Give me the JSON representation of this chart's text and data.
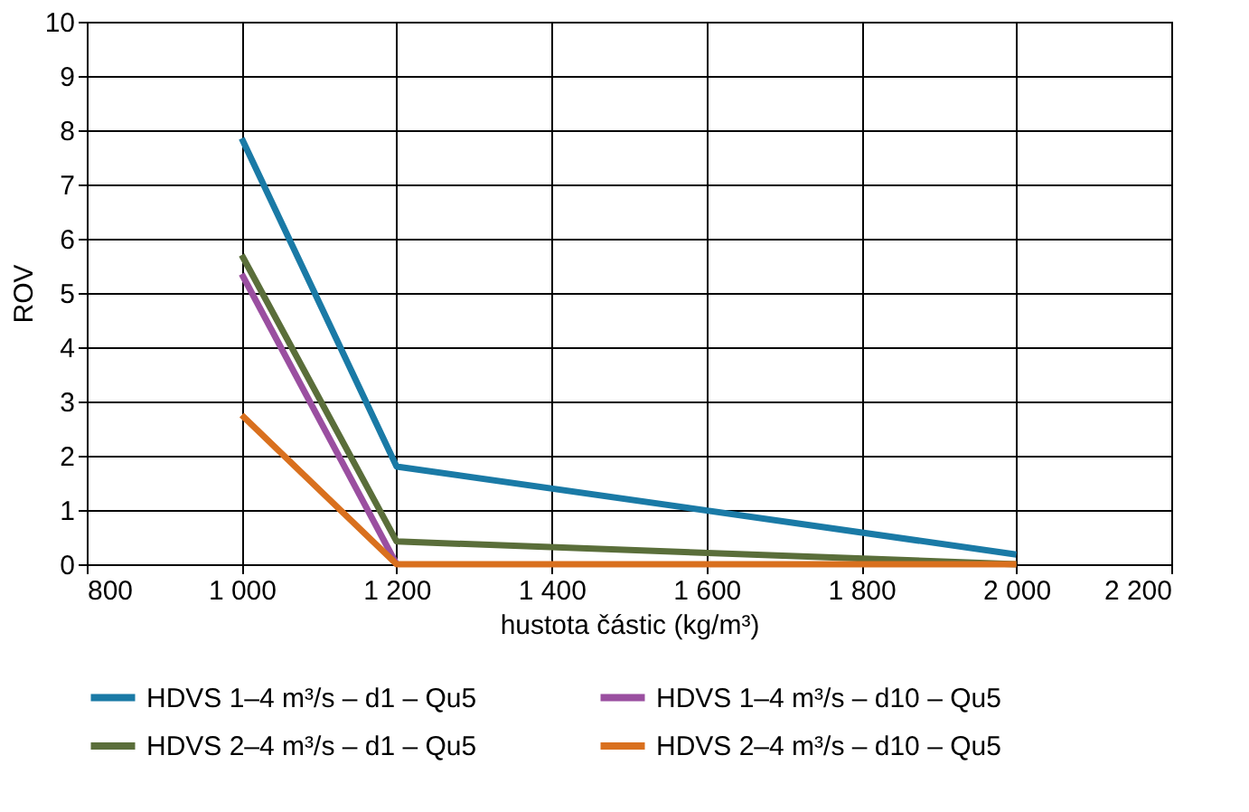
{
  "chart_data": {
    "type": "line",
    "xlabel": "hustota částic (kg/m³)",
    "ylabel": "ROV",
    "xlim": [
      800,
      2200
    ],
    "xticks": [
      {
        "value": 800,
        "label": "800"
      },
      {
        "value": 1000,
        "label": "1 000"
      },
      {
        "value": 1200,
        "label": "1 200"
      },
      {
        "value": 1400,
        "label": "1 400"
      },
      {
        "value": 1600,
        "label": "1 600"
      },
      {
        "value": 1800,
        "label": "1 800"
      },
      {
        "value": 2000,
        "label": "2 000"
      },
      {
        "value": 2200,
        "label": "2 200"
      }
    ],
    "ylim": [
      0,
      10
    ],
    "yticks": [
      0,
      1,
      2,
      3,
      4,
      5,
      6,
      7,
      8,
      9,
      10
    ],
    "x": [
      1000,
      1200,
      2000
    ],
    "series": [
      {
        "name": "HDVS 1–4 m³/s – d1 – Qu5",
        "color": "#1a7aa6",
        "values": [
          7.85,
          1.8,
          0.18
        ]
      },
      {
        "name": "HDVS 1–4 m³/s – d10 – Qu5",
        "color": "#9a4fa0",
        "values": [
          5.35,
          0.0,
          null
        ]
      },
      {
        "name": "HDVS 2–4 m³/s – d1 – Qu5",
        "color": "#5a6e3a",
        "values": [
          5.7,
          0.42,
          0.0
        ]
      },
      {
        "name": "HDVS 2–4 m³/s – d10 – Qu5",
        "color": "#d9701e",
        "values": [
          2.75,
          0.0,
          0.0
        ]
      }
    ],
    "grid": true,
    "legend": "bottom",
    "marker": "none",
    "line_style": "solid"
  }
}
